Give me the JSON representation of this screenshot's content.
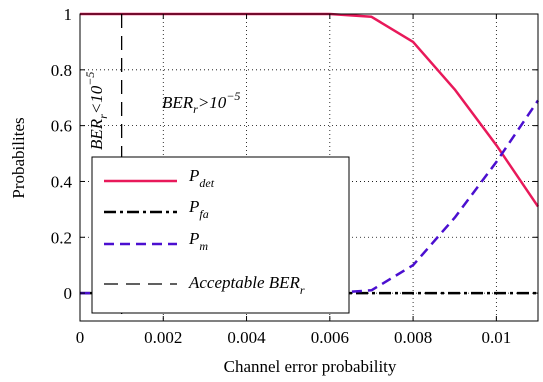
{
  "chart_data": {
    "type": "line",
    "xlabel": "Channel error probability",
    "ylabel": "Probabilites",
    "xlim": [
      0,
      0.011
    ],
    "ylim": [
      -0.1,
      1
    ],
    "xticks": [
      0,
      0.002,
      0.004,
      0.006,
      0.008,
      0.01
    ],
    "xtick_labels": [
      "0",
      "0.002",
      "0.004",
      "0.006",
      "0.008",
      "0.01"
    ],
    "yticks": [
      0,
      0.2,
      0.4,
      0.6,
      0.8,
      1
    ],
    "ytick_labels": [
      "0",
      "0.2",
      "0.4",
      "0.6",
      "0.8",
      "1"
    ],
    "grid": true,
    "legend_position": "lower-left",
    "series": [
      {
        "name": "P_det",
        "color": "#e8195a",
        "style": "solid",
        "x": [
          0,
          0.001,
          0.002,
          0.003,
          0.004,
          0.005,
          0.006,
          0.007,
          0.008,
          0.009,
          0.01,
          0.011
        ],
        "y": [
          1,
          1,
          1,
          1,
          1,
          1,
          1,
          0.99,
          0.9,
          0.73,
          0.53,
          0.31
        ]
      },
      {
        "name": "P_fa",
        "color": "#000000",
        "style": "dashdot",
        "x": [
          0,
          0.011
        ],
        "y": [
          0,
          0
        ]
      },
      {
        "name": "P_m",
        "color": "#4b0fd0",
        "style": "dashed",
        "x": [
          0,
          0.001,
          0.002,
          0.003,
          0.004,
          0.005,
          0.006,
          0.007,
          0.008,
          0.009,
          0.01,
          0.011
        ],
        "y": [
          0,
          0,
          0,
          0,
          0,
          0,
          0,
          0.01,
          0.1,
          0.27,
          0.47,
          0.69
        ]
      },
      {
        "name": "Acceptable BER_r",
        "color": "#000000",
        "style": "dashed",
        "vertical_x": 0.001
      }
    ],
    "legend": {
      "entries": [
        {
          "main": "P",
          "sub": "det"
        },
        {
          "main": "P",
          "sub": "fa"
        },
        {
          "main": "P",
          "sub": "m"
        },
        {
          "main": "Acceptable BER",
          "sub": "r"
        }
      ]
    },
    "annotations": {
      "left": {
        "main": "BER",
        "sub": "r",
        "rel": "<10",
        "sup": "−5"
      },
      "right": {
        "main": "BER",
        "sub": "r",
        "rel": ">10",
        "sup": "−5"
      }
    }
  }
}
